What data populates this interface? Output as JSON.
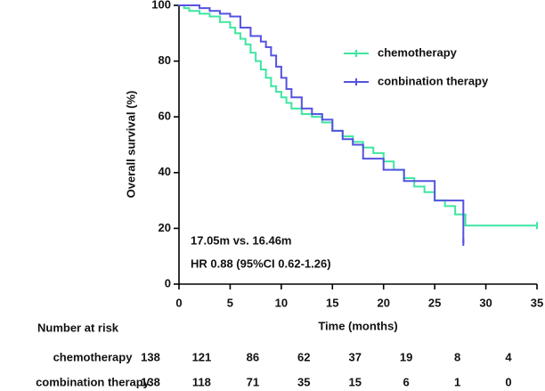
{
  "chart_data": {
    "type": "line",
    "step": true,
    "ylabel": "Overall survival (%)",
    "xlabel": "Time (months)",
    "xlim": [
      0,
      35
    ],
    "xticks": [
      0,
      5,
      10,
      15,
      20,
      25,
      30,
      35
    ],
    "ylim": [
      0,
      100
    ],
    "yticks": [
      0,
      20,
      40,
      60,
      80,
      100
    ],
    "legend": "upper right",
    "annotations": [
      "17.05m vs. 16.46m",
      "HR 0.88 (95%CI 0.62-1.26)"
    ],
    "series": [
      {
        "name": "chemotherapy",
        "color": "#3ee6a0",
        "x": [
          0,
          0.5,
          1,
          2,
          3,
          4,
          5,
          5.5,
          6,
          6.5,
          7,
          7.5,
          8,
          8.5,
          9,
          9.5,
          10,
          10.5,
          11,
          12,
          13,
          14,
          15,
          16,
          17,
          18,
          19,
          20,
          21,
          22,
          23,
          24,
          25,
          26,
          27,
          28,
          35
        ],
        "values": [
          100,
          99,
          98,
          97,
          96,
          94,
          92,
          90,
          88,
          86,
          83,
          80,
          77,
          74,
          71,
          69,
          67,
          65,
          63,
          61,
          60,
          58,
          55,
          53,
          51,
          49,
          47,
          44,
          41,
          38,
          35,
          33,
          30,
          28,
          25,
          21,
          21
        ]
      },
      {
        "name": "conbination therapy",
        "color": "#5552e0",
        "x": [
          0,
          2,
          3,
          4,
          5,
          6,
          7,
          8,
          8.5,
          9,
          9.5,
          10,
          10.5,
          11,
          12,
          13,
          14,
          15,
          16,
          17,
          18,
          20,
          22,
          25,
          27.8
        ],
        "values": [
          100,
          99,
          98,
          97,
          96,
          92,
          89,
          87,
          85,
          82,
          78,
          74,
          70,
          67,
          63,
          61,
          59,
          55,
          52,
          50,
          45,
          41,
          37,
          30,
          15
        ]
      }
    ]
  },
  "risk_table": {
    "title": "Number at risk",
    "rows": [
      {
        "label": "chemotherapy",
        "values": [
          138,
          121,
          86,
          62,
          37,
          19,
          8,
          4
        ]
      },
      {
        "label": "combination therapy",
        "values": [
          138,
          118,
          71,
          35,
          15,
          6,
          1,
          0
        ]
      }
    ]
  }
}
